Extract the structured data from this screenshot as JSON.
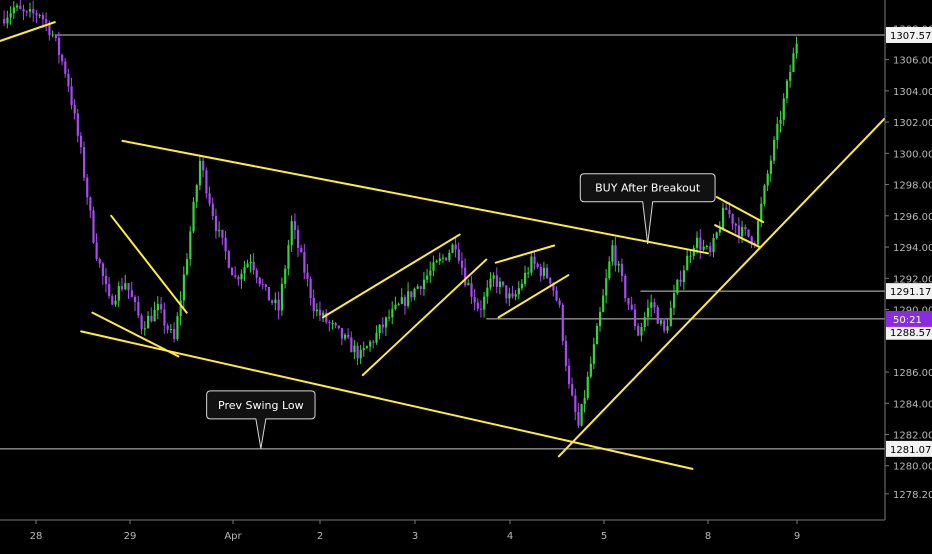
{
  "colors": {
    "background": "#000000",
    "bull": "#39d23c",
    "bear": "#a64bf0",
    "trendline": "#ffeb3b",
    "hline": "#c8c8c8",
    "axis_text": "#b8b8b8",
    "axis_line": "#7a7a7a",
    "price_tag_bg": "#f2f2f2",
    "price_tag_text": "#000000",
    "current_tag_bg": "#8a2be2",
    "callout_bg": "#111111",
    "callout_border": "#d8d8d8",
    "callout_text": "#ffffff"
  },
  "chart_data": {
    "type": "candlestick",
    "y_axis": {
      "ticks": [
        "1308.000",
        "1306.000",
        "1304.000",
        "1302.000",
        "1300.000",
        "1298.000",
        "1296.000",
        "1294.000",
        "1292.000",
        "1290.000",
        "1286.000",
        "1284.000",
        "1282.000",
        "1280.000",
        "1278.200"
      ],
      "ylim": [
        1277.0,
        1309.5
      ]
    },
    "x_axis": {
      "labels": [
        "28",
        "29",
        "Apr",
        "2",
        "3",
        "4",
        "5",
        "8",
        "9"
      ]
    },
    "price_tags": [
      {
        "label": "1307.576",
        "price": 1307.576,
        "kind": "level"
      },
      {
        "label": "1291.179",
        "price": 1291.179,
        "kind": "level"
      },
      {
        "label": "1288.577",
        "price": 1288.577,
        "kind": "last"
      },
      {
        "label": "1281.079",
        "price": 1281.079,
        "kind": "level"
      }
    ],
    "countdown_tag": {
      "label": "50:21",
      "price": 1289.4
    },
    "horizontal_levels": [
      {
        "price": 1307.576,
        "start_day": 0.2
      },
      {
        "price": 1291.179,
        "start_day": 6.35
      },
      {
        "price": 1289.4,
        "start_day": 4.75
      },
      {
        "price": 1281.079,
        "start_day": -0.4
      }
    ],
    "annotations": [
      {
        "text": "BUY After Breakout",
        "day": 6.42,
        "price": 1297.8,
        "pointer_day": 6.42,
        "pointer_price": 1294.2
      },
      {
        "text": "Prev Swing Low",
        "day": 2.32,
        "price": 1283.9,
        "pointer_day": 2.32,
        "pointer_price": 1281.1
      }
    ],
    "trendlines": [
      {
        "x1": -0.38,
        "y1": 1307.2,
        "x2": 0.2,
        "y2": 1308.4
      },
      {
        "x1": 0.92,
        "y1": 1300.8,
        "x2": 7.0,
        "y2": 1293.6
      },
      {
        "x1": 0.48,
        "y1": 1288.6,
        "x2": 6.85,
        "y2": 1279.8
      },
      {
        "x1": 0.6,
        "y1": 1289.8,
        "x2": 1.47,
        "y2": 1287.0
      },
      {
        "x1": 0.8,
        "y1": 1296.0,
        "x2": 1.55,
        "y2": 1289.8
      },
      {
        "x1": 3.03,
        "y1": 1289.5,
        "x2": 4.47,
        "y2": 1294.8
      },
      {
        "x1": 3.45,
        "y1": 1285.8,
        "x2": 4.75,
        "y2": 1293.2
      },
      {
        "x1": 4.85,
        "y1": 1293.0,
        "x2": 5.47,
        "y2": 1294.1
      },
      {
        "x1": 4.88,
        "y1": 1289.5,
        "x2": 5.62,
        "y2": 1292.2
      },
      {
        "x1": 5.52,
        "y1": 1280.6,
        "x2": 8.98,
        "y2": 1302.2
      },
      {
        "x1": 7.1,
        "y1": 1297.2,
        "x2": 7.62,
        "y2": 1295.6
      },
      {
        "x1": 7.08,
        "y1": 1295.4,
        "x2": 7.58,
        "y2": 1294.0
      }
    ],
    "segments": [
      {
        "from_day": -0.35,
        "to_day": 0.2,
        "waypoints": [
          1308.6,
          1309.3,
          1308.8,
          1309.0,
          1307.6
        ]
      },
      {
        "from_day": 0.2,
        "to_day": 0.8,
        "waypoints": [
          1307.6,
          1305.0,
          1300.0,
          1294.0,
          1290.5
        ]
      },
      {
        "from_day": 0.8,
        "to_day": 1.45,
        "waypoints": [
          1290.5,
          1291.8,
          1289.0,
          1290.0,
          1288.0
        ]
      },
      {
        "from_day": 1.45,
        "to_day": 1.7,
        "waypoints": [
          1288.0,
          1293.5,
          1299.5
        ]
      },
      {
        "from_day": 1.7,
        "to_day": 2.05,
        "waypoints": [
          1299.5,
          1295.0,
          1292.0
        ]
      },
      {
        "from_day": 2.05,
        "to_day": 2.4,
        "waypoints": [
          1292.0,
          1293.3,
          1291.0
        ]
      },
      {
        "from_day": 2.4,
        "to_day": 2.7,
        "waypoints": [
          1291.0,
          1290.0,
          1295.5
        ]
      },
      {
        "from_day": 2.7,
        "to_day": 3.45,
        "waypoints": [
          1295.5,
          1290.0,
          1288.5,
          1287.0
        ]
      },
      {
        "from_day": 3.45,
        "to_day": 4.35,
        "waypoints": [
          1287.0,
          1289.5,
          1291.5,
          1293.5
        ]
      },
      {
        "from_day": 4.35,
        "to_day": 4.55,
        "waypoints": [
          1293.5,
          1294.3,
          1292.0
        ]
      },
      {
        "from_day": 4.55,
        "to_day": 4.85,
        "waypoints": [
          1292.0,
          1290.0,
          1292.0
        ]
      },
      {
        "from_day": 4.85,
        "to_day": 5.45,
        "waypoints": [
          1292.0,
          1290.5,
          1293.0,
          1292.0
        ]
      },
      {
        "from_day": 5.45,
        "to_day": 5.75,
        "waypoints": [
          1292.0,
          1290.0,
          1285.0,
          1282.5
        ]
      },
      {
        "from_day": 5.75,
        "to_day": 6.1,
        "waypoints": [
          1282.5,
          1288.0,
          1294.0
        ]
      },
      {
        "from_day": 6.1,
        "to_day": 6.6,
        "waypoints": [
          1294.0,
          1291.0,
          1288.5,
          1290.5,
          1288.5
        ]
      },
      {
        "from_day": 6.6,
        "to_day": 7.05,
        "waypoints": [
          1288.5,
          1292.0,
          1294.5,
          1293.5
        ]
      },
      {
        "from_day": 7.05,
        "to_day": 7.55,
        "waypoints": [
          1293.5,
          1296.5,
          1295.0,
          1294.5
        ]
      },
      {
        "from_day": 7.55,
        "to_day": 8.02,
        "waypoints": [
          1294.5,
          1299.0,
          1303.0,
          1307.2
        ]
      }
    ]
  }
}
